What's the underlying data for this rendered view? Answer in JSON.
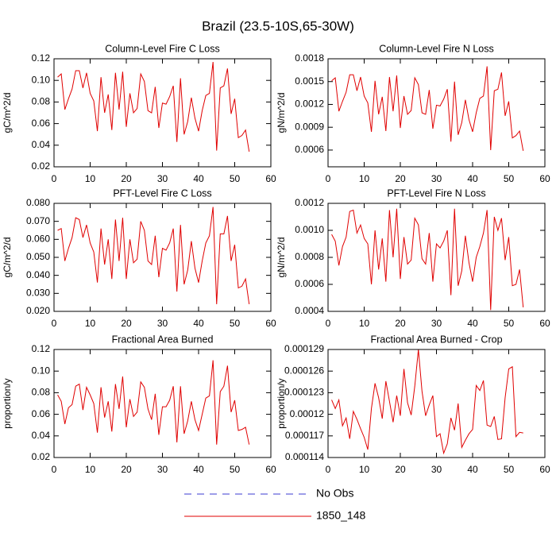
{
  "title": "Brazil (23.5-10S,65-30W)",
  "legend": [
    {
      "name": "No Obs",
      "color": "#3b3bd0",
      "style": "dashed"
    },
    {
      "name": "1850_148",
      "color": "#e00000",
      "style": "solid"
    }
  ],
  "chart_data": [
    {
      "type": "line",
      "title": "Column-Level Fire C Loss",
      "y_label": "gC/m^2/d",
      "x": [
        1,
        2,
        3,
        4,
        5,
        6,
        7,
        8,
        9,
        10,
        11,
        12,
        13,
        14,
        15,
        16,
        17,
        18,
        19,
        20,
        21,
        22,
        23,
        24,
        25,
        26,
        27,
        28,
        29,
        30,
        31,
        32,
        33,
        34,
        35,
        36,
        37,
        38,
        39,
        40,
        41,
        42,
        43,
        44,
        45,
        46,
        47,
        48,
        49,
        50,
        51,
        52,
        53,
        54
      ],
      "series": [
        {
          "color": "#e00000",
          "values": [
            0.103,
            0.106,
            0.073,
            0.083,
            0.092,
            0.109,
            0.109,
            0.093,
            0.107,
            0.088,
            0.081,
            0.053,
            0.103,
            0.07,
            0.087,
            0.054,
            0.107,
            0.073,
            0.108,
            0.057,
            0.088,
            0.07,
            0.074,
            0.106,
            0.099,
            0.072,
            0.07,
            0.094,
            0.056,
            0.079,
            0.078,
            0.085,
            0.095,
            0.043,
            0.102,
            0.05,
            0.062,
            0.084,
            0.065,
            0.053,
            0.072,
            0.086,
            0.088,
            0.117,
            0.035,
            0.093,
            0.095,
            0.111,
            0.069,
            0.083,
            0.047,
            0.049,
            0.054,
            0.034
          ]
        }
      ],
      "xlim": [
        0,
        60
      ],
      "xticks": [
        0,
        10,
        20,
        30,
        40,
        50,
        60
      ],
      "ylim": [
        0.02,
        0.12
      ],
      "yticks": [
        0.02,
        0.04,
        0.06,
        0.08,
        {
          "value": 0.1,
          "label": "0.10"
        },
        0.12
      ]
    },
    {
      "type": "line",
      "title": "Column-Level Fire N Loss",
      "y_label": "gN/m^2/d",
      "x": [
        1,
        2,
        3,
        4,
        5,
        6,
        7,
        8,
        9,
        10,
        11,
        12,
        13,
        14,
        15,
        16,
        17,
        18,
        19,
        20,
        21,
        22,
        23,
        24,
        25,
        26,
        27,
        28,
        29,
        30,
        31,
        32,
        33,
        34,
        35,
        36,
        37,
        38,
        39,
        40,
        41,
        42,
        43,
        44,
        45,
        46,
        47,
        48,
        49,
        50,
        51,
        52,
        53,
        54
      ],
      "series": [
        {
          "color": "#e00000",
          "values": [
            0.00151,
            0.00155,
            0.00111,
            0.00124,
            0.00136,
            0.00159,
            0.00159,
            0.00138,
            0.00156,
            0.00131,
            0.00122,
            0.00084,
            0.00151,
            0.00107,
            0.0013,
            0.00085,
            0.00156,
            0.00111,
            0.00158,
            0.00089,
            0.00131,
            0.00107,
            0.00112,
            0.00155,
            0.00146,
            0.00109,
            0.00107,
            0.00139,
            0.00088,
            0.00119,
            0.00118,
            0.00127,
            0.0014,
            0.00071,
            0.0015,
            0.0008,
            0.00096,
            0.00126,
            0.001,
            0.00084,
            0.00109,
            0.00128,
            0.00131,
            0.0017,
            0.0006,
            0.00138,
            0.0014,
            0.00162,
            0.00105,
            0.00124,
            0.00076,
            0.00079,
            0.00085,
            0.00059
          ]
        }
      ],
      "xlim": [
        0,
        60
      ],
      "xticks": [
        0,
        10,
        20,
        30,
        40,
        50,
        60
      ],
      "ylim": [
        0.00038,
        0.0018
      ],
      "yticks": [
        0.0006,
        0.0009,
        0.0012,
        0.0015,
        0.0018
      ]
    },
    {
      "type": "line",
      "title": "PFT-Level Fire C Loss",
      "y_label": "gC/m^2/d",
      "x": [
        1,
        2,
        3,
        4,
        5,
        6,
        7,
        8,
        9,
        10,
        11,
        12,
        13,
        14,
        15,
        16,
        17,
        18,
        19,
        20,
        21,
        22,
        23,
        24,
        25,
        26,
        27,
        28,
        29,
        30,
        31,
        32,
        33,
        34,
        35,
        36,
        37,
        38,
        39,
        40,
        41,
        42,
        43,
        44,
        45,
        46,
        47,
        48,
        49,
        50,
        51,
        52,
        53,
        54
      ],
      "series": [
        {
          "color": "#e00000",
          "values": [
            0.065,
            0.066,
            0.048,
            0.055,
            0.061,
            0.072,
            0.071,
            0.061,
            0.068,
            0.058,
            0.053,
            0.036,
            0.066,
            0.046,
            0.06,
            0.038,
            0.071,
            0.048,
            0.072,
            0.038,
            0.06,
            0.047,
            0.049,
            0.07,
            0.065,
            0.048,
            0.046,
            0.062,
            0.039,
            0.055,
            0.054,
            0.058,
            0.066,
            0.031,
            0.068,
            0.035,
            0.043,
            0.059,
            0.044,
            0.036,
            0.048,
            0.058,
            0.062,
            0.078,
            0.024,
            0.063,
            0.063,
            0.073,
            0.048,
            0.057,
            0.033,
            0.034,
            0.038,
            0.024
          ]
        }
      ],
      "xlim": [
        0,
        60
      ],
      "xticks": [
        0,
        10,
        20,
        30,
        40,
        50,
        60
      ],
      "ylim": [
        0.02,
        0.08
      ],
      "yticks": [
        {
          "value": 0.02,
          "label": "0.020"
        },
        {
          "value": 0.03,
          "label": "0.030"
        },
        {
          "value": 0.04,
          "label": "0.040"
        },
        {
          "value": 0.05,
          "label": "0.050"
        },
        {
          "value": 0.06,
          "label": "0.060"
        },
        {
          "value": 0.07,
          "label": "0.070"
        },
        {
          "value": 0.08,
          "label": "0.080"
        }
      ]
    },
    {
      "type": "line",
      "title": "PFT-Level Fire N Loss",
      "y_label": "gN/m^2/d",
      "x": [
        1,
        2,
        3,
        4,
        5,
        6,
        7,
        8,
        9,
        10,
        11,
        12,
        13,
        14,
        15,
        16,
        17,
        18,
        19,
        20,
        21,
        22,
        23,
        24,
        25,
        26,
        27,
        28,
        29,
        30,
        31,
        32,
        33,
        34,
        35,
        36,
        37,
        38,
        39,
        40,
        41,
        42,
        43,
        44,
        45,
        46,
        47,
        48,
        49,
        50,
        51,
        52,
        53,
        54
      ],
      "series": [
        {
          "color": "#e00000",
          "values": [
            0.00097,
            0.00092,
            0.00074,
            0.00088,
            0.00095,
            0.00114,
            0.00115,
            0.00098,
            0.00104,
            0.00094,
            0.0009,
            0.0006,
            0.001,
            0.00071,
            0.00094,
            0.00062,
            0.00115,
            0.0008,
            0.00116,
            0.00064,
            0.00095,
            0.00075,
            0.00078,
            0.00109,
            0.00104,
            0.00079,
            0.00075,
            0.00098,
            0.00062,
            0.0009,
            0.00087,
            0.00092,
            0.001,
            0.00052,
            0.00116,
            0.00059,
            0.0007,
            0.00096,
            0.00076,
            0.00062,
            0.0008,
            0.00088,
            0.00098,
            0.00115,
            0.00041,
            0.0011,
            0.001,
            0.00109,
            0.00078,
            0.00095,
            0.00059,
            0.0006,
            0.00071,
            0.00043
          ]
        }
      ],
      "xlim": [
        0,
        60
      ],
      "xticks": [
        0,
        10,
        20,
        30,
        40,
        50,
        60
      ],
      "ylim": [
        0.0004,
        0.0012
      ],
      "yticks": [
        0.0004,
        0.0006,
        0.0008,
        {
          "value": 0.001,
          "label": "0.0010"
        },
        0.0012
      ]
    },
    {
      "type": "line",
      "title": "Fractional Area Burned",
      "y_label": "proportion/y",
      "x": [
        1,
        2,
        3,
        4,
        5,
        6,
        7,
        8,
        9,
        10,
        11,
        12,
        13,
        14,
        15,
        16,
        17,
        18,
        19,
        20,
        21,
        22,
        23,
        24,
        25,
        26,
        27,
        28,
        29,
        30,
        31,
        32,
        33,
        34,
        35,
        36,
        37,
        38,
        39,
        40,
        41,
        42,
        43,
        44,
        45,
        46,
        47,
        48,
        49,
        50,
        51,
        52,
        53,
        54
      ],
      "series": [
        {
          "color": "#e00000",
          "values": [
            0.078,
            0.072,
            0.051,
            0.066,
            0.069,
            0.086,
            0.088,
            0.064,
            0.085,
            0.078,
            0.07,
            0.043,
            0.085,
            0.057,
            0.072,
            0.044,
            0.088,
            0.065,
            0.095,
            0.048,
            0.074,
            0.058,
            0.062,
            0.09,
            0.085,
            0.065,
            0.055,
            0.079,
            0.041,
            0.067,
            0.067,
            0.073,
            0.086,
            0.034,
            0.086,
            0.042,
            0.054,
            0.072,
            0.055,
            0.045,
            0.06,
            0.075,
            0.077,
            0.11,
            0.032,
            0.081,
            0.086,
            0.105,
            0.062,
            0.073,
            0.045,
            0.046,
            0.048,
            0.032
          ]
        }
      ],
      "xlim": [
        0,
        60
      ],
      "xticks": [
        0,
        10,
        20,
        30,
        40,
        50,
        60
      ],
      "ylim": [
        0.02,
        0.12
      ],
      "yticks": [
        0.02,
        0.04,
        0.06,
        0.08,
        {
          "value": 0.1,
          "label": "0.10"
        },
        0.12
      ]
    },
    {
      "type": "line",
      "title": "Fractional Area Burned - Crop",
      "y_label": "proportion/y",
      "x": [
        1,
        2,
        3,
        4,
        5,
        6,
        7,
        8,
        9,
        10,
        11,
        12,
        13,
        14,
        15,
        16,
        17,
        18,
        19,
        20,
        21,
        22,
        23,
        24,
        25,
        26,
        27,
        28,
        29,
        30,
        31,
        32,
        33,
        34,
        35,
        36,
        37,
        38,
        39,
        40,
        41,
        42,
        43,
        44,
        45,
        46,
        47,
        48,
        49,
        50,
        51,
        52,
        53,
        54
      ],
      "series": [
        {
          "color": "#e00000",
          "values": [
            0.000122,
            0.0001208,
            0.000122,
            0.0001184,
            0.0001195,
            0.0001166,
            0.0001204,
            0.0001193,
            0.000118,
            0.0001168,
            0.0001151,
            0.0001208,
            0.0001243,
            0.0001223,
            0.0001194,
            0.0001246,
            0.0001218,
            0.0001189,
            0.0001226,
            0.0001198,
            0.0001263,
            0.0001216,
            0.0001199,
            0.0001239,
            0.000129,
            0.0001232,
            0.0001198,
            0.0001213,
            0.0001226,
            0.0001169,
            0.0001173,
            0.0001146,
            0.0001159,
            0.0001195,
            0.0001178,
            0.0001215,
            0.0001154,
            0.0001164,
            0.0001173,
            0.0001179,
            0.000124,
            0.0001233,
            0.0001247,
            0.0001185,
            0.0001183,
            0.0001197,
            0.0001165,
            0.0001166,
            0.0001223,
            0.0001263,
            0.0001266,
            0.0001169,
            0.0001175,
            0.0001174
          ]
        }
      ],
      "xlim": [
        0,
        60
      ],
      "xticks": [
        0,
        10,
        20,
        30,
        40,
        50,
        60
      ],
      "ylim": [
        0.000114,
        0.000129
      ],
      "yticks": [
        0.000114,
        0.000117,
        0.00012,
        0.000123,
        0.000126,
        0.000129
      ]
    }
  ]
}
